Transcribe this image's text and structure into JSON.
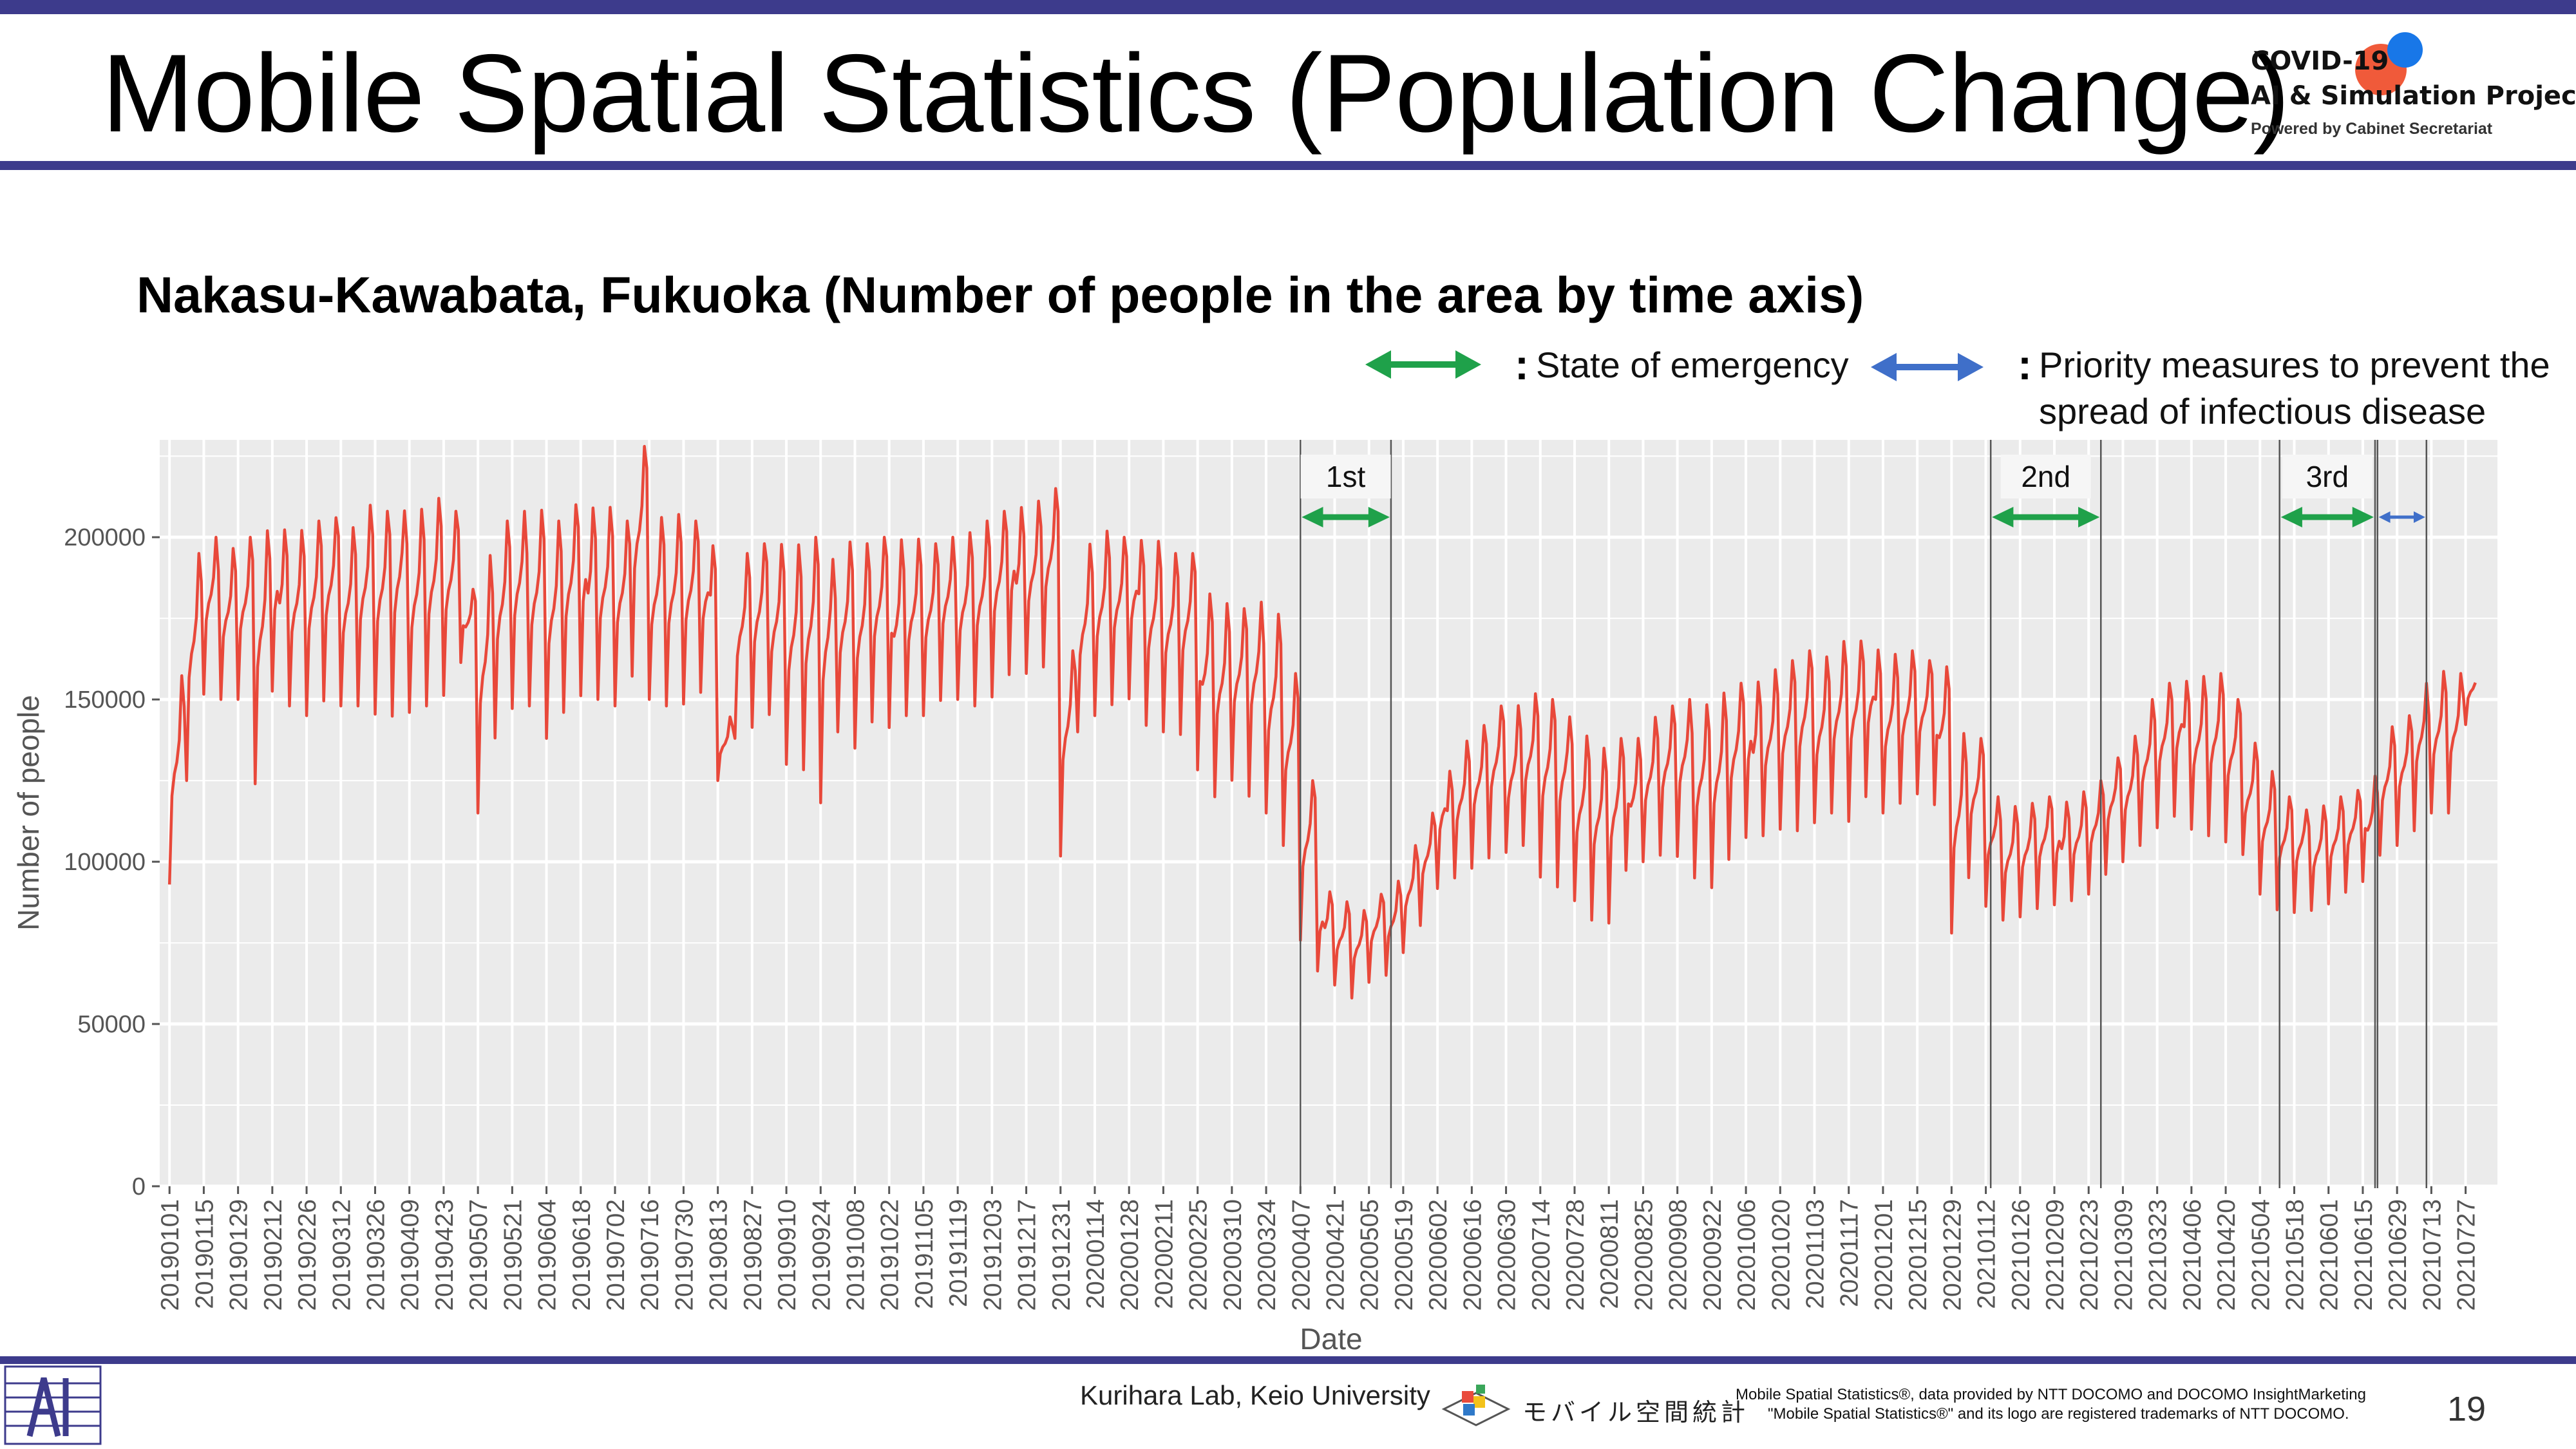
{
  "slide": {
    "title": "Mobile Spatial Statistics (Population Change)",
    "page_number": "19"
  },
  "logo": {
    "line1": "COVID-19",
    "line2": "AI & Simulation Project",
    "line3": "Powered by Cabinet Secretariat"
  },
  "legend": {
    "emergency_label": "State of emergency",
    "priority_label_line1": "Priority measures to prevent the",
    "priority_label_line2": "spread of infectious disease",
    "colon": ":"
  },
  "footer": {
    "lab": "Kurihara Lab, Keio University",
    "docomo_logo_text": "モバイル空間統計",
    "note_line1": "Mobile Spatial Statistics®, data provided by NTT DOCOMO and DOCOMO InsightMarketing",
    "note_line2": "\"Mobile Spatial Statistics®\" and its logo are registered trademarks of NTT DOCOMO."
  },
  "colors": {
    "brand_rule": "#3d3b8c",
    "series": "#e8483a",
    "emergency_arrow": "#1fa14a",
    "priority_arrow": "#3f6fc9",
    "panel_bg": "#ebebeb"
  },
  "chart_data": {
    "type": "line",
    "title": "Nakasu-Kawabata, Fukuoka (Number of people in the area by time axis)",
    "xlabel": "Date",
    "ylabel": "Number of people",
    "ylim": [
      0,
      230000
    ],
    "yticks": [
      0,
      50000,
      100000,
      150000,
      200000
    ],
    "grid": true,
    "x_tick_labels": [
      "20190101",
      "20190115",
      "20190129",
      "20190212",
      "20190226",
      "20190312",
      "20190326",
      "20190409",
      "20190423",
      "20190507",
      "20190521",
      "20190604",
      "20190618",
      "20190702",
      "20190716",
      "20190730",
      "20190813",
      "20190827",
      "20190910",
      "20190924",
      "20191008",
      "20191022",
      "20191105",
      "20191119",
      "20191203",
      "20191217",
      "20191231",
      "20200114",
      "20200128",
      "20200211",
      "20200225",
      "20200310",
      "20200324",
      "20200407",
      "20200421",
      "20200505",
      "20200519",
      "20200602",
      "20200616",
      "20200630",
      "20200714",
      "20200728",
      "20200811",
      "20200825",
      "20200908",
      "20200922",
      "20201006",
      "20201020",
      "20201103",
      "20201117",
      "20201201",
      "20201215",
      "20201229",
      "20210112",
      "20210126",
      "20210209",
      "20210223",
      "20210309",
      "20210323",
      "20210406",
      "20210420",
      "20210504",
      "20210518",
      "20210601",
      "20210615",
      "20210629",
      "20210713",
      "20210727"
    ],
    "x_start": "2019-01-01",
    "x_end": "2021-07-31",
    "series": [
      {
        "approx_weekly_values": [
          {
            "week_of": "2019-01-01",
            "low": 93000,
            "high": 158000
          },
          {
            "week_of": "2019-01-08",
            "low": 125000,
            "high": 195000
          },
          {
            "week_of": "2019-01-15",
            "low": 150000,
            "high": 200000
          },
          {
            "week_of": "2019-01-22",
            "low": 150000,
            "high": 198000
          },
          {
            "week_of": "2019-01-29",
            "low": 150000,
            "high": 200000
          },
          {
            "week_of": "2019-02-05",
            "low": 123000,
            "high": 202000
          },
          {
            "week_of": "2019-02-12",
            "low": 150000,
            "high": 205000
          },
          {
            "week_of": "2019-02-19",
            "low": 148000,
            "high": 203000
          },
          {
            "week_of": "2019-02-26",
            "low": 145000,
            "high": 205000
          },
          {
            "week_of": "2019-03-05",
            "low": 148000,
            "high": 206000
          },
          {
            "week_of": "2019-03-12",
            "low": 148000,
            "high": 205000
          },
          {
            "week_of": "2019-03-19",
            "low": 148000,
            "high": 210000
          },
          {
            "week_of": "2019-03-26",
            "low": 145000,
            "high": 208000
          },
          {
            "week_of": "2019-04-02",
            "low": 142000,
            "high": 212000
          },
          {
            "week_of": "2019-04-09",
            "low": 146000,
            "high": 210000
          },
          {
            "week_of": "2019-04-16",
            "low": 148000,
            "high": 212000
          },
          {
            "week_of": "2019-04-23",
            "low": 150000,
            "high": 208000
          },
          {
            "week_of": "2019-04-30",
            "low": 160000,
            "high": 185000
          },
          {
            "week_of": "2019-05-07",
            "low": 115000,
            "high": 195000
          },
          {
            "week_of": "2019-05-14",
            "low": 138000,
            "high": 205000
          },
          {
            "week_of": "2019-05-21",
            "low": 145000,
            "high": 208000
          },
          {
            "week_of": "2019-05-28",
            "low": 148000,
            "high": 210000
          },
          {
            "week_of": "2019-06-04",
            "low": 138000,
            "high": 205000
          },
          {
            "week_of": "2019-06-11",
            "low": 145000,
            "high": 210000
          },
          {
            "week_of": "2019-06-18",
            "low": 148000,
            "high": 212000
          },
          {
            "week_of": "2019-06-25",
            "low": 150000,
            "high": 210000
          },
          {
            "week_of": "2019-07-02",
            "low": 148000,
            "high": 205000
          },
          {
            "week_of": "2019-07-09",
            "low": 155000,
            "high": 228000
          },
          {
            "week_of": "2019-07-16",
            "low": 150000,
            "high": 208000
          },
          {
            "week_of": "2019-07-23",
            "low": 148000,
            "high": 207000
          },
          {
            "week_of": "2019-07-30",
            "low": 148000,
            "high": 205000
          },
          {
            "week_of": "2019-08-06",
            "low": 150000,
            "high": 200000
          },
          {
            "week_of": "2019-08-13",
            "low": 125000,
            "high": 145000
          },
          {
            "week_of": "2019-08-20",
            "low": 138000,
            "high": 195000
          },
          {
            "week_of": "2019-08-27",
            "low": 140000,
            "high": 198000
          },
          {
            "week_of": "2019-09-03",
            "low": 142000,
            "high": 200000
          },
          {
            "week_of": "2019-09-10",
            "low": 130000,
            "high": 198000
          },
          {
            "week_of": "2019-09-17",
            "low": 128000,
            "high": 200000
          },
          {
            "week_of": "2019-09-24",
            "low": 115000,
            "high": 198000
          },
          {
            "week_of": "2019-10-01",
            "low": 140000,
            "high": 200000
          },
          {
            "week_of": "2019-10-08",
            "low": 135000,
            "high": 198000
          },
          {
            "week_of": "2019-10-15",
            "low": 142000,
            "high": 200000
          },
          {
            "week_of": "2019-10-22",
            "low": 138000,
            "high": 202000
          },
          {
            "week_of": "2019-10-29",
            "low": 145000,
            "high": 200000
          },
          {
            "week_of": "2019-11-05",
            "low": 145000,
            "high": 198000
          },
          {
            "week_of": "2019-11-12",
            "low": 148000,
            "high": 200000
          },
          {
            "week_of": "2019-11-19",
            "low": 150000,
            "high": 203000
          },
          {
            "week_of": "2019-11-26",
            "low": 148000,
            "high": 205000
          },
          {
            "week_of": "2019-12-03",
            "low": 150000,
            "high": 208000
          },
          {
            "week_of": "2019-12-10",
            "low": 155000,
            "high": 212000
          },
          {
            "week_of": "2019-12-17",
            "low": 158000,
            "high": 212000
          },
          {
            "week_of": "2019-12-24",
            "low": 160000,
            "high": 215000
          },
          {
            "week_of": "2019-12-31",
            "low": 100000,
            "high": 165000
          },
          {
            "week_of": "2020-01-07",
            "low": 140000,
            "high": 200000
          },
          {
            "week_of": "2020-01-14",
            "low": 145000,
            "high": 202000
          },
          {
            "week_of": "2020-01-21",
            "low": 148000,
            "high": 200000
          },
          {
            "week_of": "2020-01-28",
            "low": 148000,
            "high": 202000
          },
          {
            "week_of": "2020-02-04",
            "low": 142000,
            "high": 200000
          },
          {
            "week_of": "2020-02-11",
            "low": 140000,
            "high": 195000
          },
          {
            "week_of": "2020-02-18",
            "low": 138000,
            "high": 195000
          },
          {
            "week_of": "2020-02-25",
            "low": 125000,
            "high": 185000
          },
          {
            "week_of": "2020-03-03",
            "low": 120000,
            "high": 180000
          },
          {
            "week_of": "2020-03-10",
            "low": 125000,
            "high": 178000
          },
          {
            "week_of": "2020-03-17",
            "low": 118000,
            "high": 180000
          },
          {
            "week_of": "2020-03-24",
            "low": 115000,
            "high": 178000
          },
          {
            "week_of": "2020-03-31",
            "low": 105000,
            "high": 158000
          },
          {
            "week_of": "2020-04-07",
            "low": 75000,
            "high": 125000
          },
          {
            "week_of": "2020-04-14",
            "low": 65000,
            "high": 92000
          },
          {
            "week_of": "2020-04-21",
            "low": 62000,
            "high": 88000
          },
          {
            "week_of": "2020-04-28",
            "low": 58000,
            "high": 85000
          },
          {
            "week_of": "2020-05-05",
            "low": 62000,
            "high": 90000
          },
          {
            "week_of": "2020-05-12",
            "low": 65000,
            "high": 95000
          },
          {
            "week_of": "2020-05-19",
            "low": 72000,
            "high": 105000
          },
          {
            "week_of": "2020-05-26",
            "low": 80000,
            "high": 115000
          },
          {
            "week_of": "2020-06-02",
            "low": 90000,
            "high": 130000
          },
          {
            "week_of": "2020-06-09",
            "low": 95000,
            "high": 138000
          },
          {
            "week_of": "2020-06-16",
            "low": 98000,
            "high": 142000
          },
          {
            "week_of": "2020-06-23",
            "low": 100000,
            "high": 148000
          },
          {
            "week_of": "2020-06-30",
            "low": 100000,
            "high": 150000
          },
          {
            "week_of": "2020-07-07",
            "low": 105000,
            "high": 152000
          },
          {
            "week_of": "2020-07-14",
            "low": 95000,
            "high": 150000
          },
          {
            "week_of": "2020-07-21",
            "low": 90000,
            "high": 148000
          },
          {
            "week_of": "2020-07-28",
            "low": 88000,
            "high": 140000
          },
          {
            "week_of": "2020-08-04",
            "low": 82000,
            "high": 135000
          },
          {
            "week_of": "2020-08-11",
            "low": 80000,
            "high": 138000
          },
          {
            "week_of": "2020-08-18",
            "low": 95000,
            "high": 140000
          },
          {
            "week_of": "2020-08-25",
            "low": 100000,
            "high": 145000
          },
          {
            "week_of": "2020-09-01",
            "low": 102000,
            "high": 148000
          },
          {
            "week_of": "2020-09-08",
            "low": 100000,
            "high": 150000
          },
          {
            "week_of": "2020-09-15",
            "low": 95000,
            "high": 150000
          },
          {
            "week_of": "2020-09-22",
            "low": 92000,
            "high": 152000
          },
          {
            "week_of": "2020-09-29",
            "low": 100000,
            "high": 155000
          },
          {
            "week_of": "2020-10-06",
            "low": 105000,
            "high": 158000
          },
          {
            "week_of": "2020-10-13",
            "low": 108000,
            "high": 160000
          },
          {
            "week_of": "2020-10-20",
            "low": 110000,
            "high": 162000
          },
          {
            "week_of": "2020-10-27",
            "low": 108000,
            "high": 165000
          },
          {
            "week_of": "2020-11-03",
            "low": 112000,
            "high": 165000
          },
          {
            "week_of": "2020-11-10",
            "low": 115000,
            "high": 168000
          },
          {
            "week_of": "2020-11-17",
            "low": 112000,
            "high": 168000
          },
          {
            "week_of": "2020-11-24",
            "low": 118000,
            "high": 168000
          },
          {
            "week_of": "2020-12-01",
            "low": 115000,
            "high": 165000
          },
          {
            "week_of": "2020-12-08",
            "low": 118000,
            "high": 165000
          },
          {
            "week_of": "2020-12-15",
            "low": 120000,
            "high": 162000
          },
          {
            "week_of": "2020-12-22",
            "low": 115000,
            "high": 162000
          },
          {
            "week_of": "2020-12-29",
            "low": 78000,
            "high": 140000
          },
          {
            "week_of": "2021-01-05",
            "low": 95000,
            "high": 138000
          },
          {
            "week_of": "2021-01-12",
            "low": 85000,
            "high": 120000
          },
          {
            "week_of": "2021-01-19",
            "low": 82000,
            "high": 118000
          },
          {
            "week_of": "2021-01-26",
            "low": 83000,
            "high": 118000
          },
          {
            "week_of": "2021-02-02",
            "low": 85000,
            "high": 120000
          },
          {
            "week_of": "2021-02-09",
            "low": 85000,
            "high": 120000
          },
          {
            "week_of": "2021-02-16",
            "low": 88000,
            "high": 122000
          },
          {
            "week_of": "2021-02-23",
            "low": 90000,
            "high": 125000
          },
          {
            "week_of": "2021-03-02",
            "low": 95000,
            "high": 132000
          },
          {
            "week_of": "2021-03-09",
            "low": 100000,
            "high": 140000
          },
          {
            "week_of": "2021-03-16",
            "low": 105000,
            "high": 150000
          },
          {
            "week_of": "2021-03-23",
            "low": 110000,
            "high": 155000
          },
          {
            "week_of": "2021-03-30",
            "low": 112000,
            "high": 158000
          },
          {
            "week_of": "2021-04-06",
            "low": 110000,
            "high": 158000
          },
          {
            "week_of": "2021-04-13",
            "low": 108000,
            "high": 158000
          },
          {
            "week_of": "2021-04-20",
            "low": 105000,
            "high": 150000
          },
          {
            "week_of": "2021-04-27",
            "low": 100000,
            "high": 138000
          },
          {
            "week_of": "2021-05-04",
            "low": 90000,
            "high": 128000
          },
          {
            "week_of": "2021-05-11",
            "low": 85000,
            "high": 120000
          },
          {
            "week_of": "2021-05-18",
            "low": 83000,
            "high": 118000
          },
          {
            "week_of": "2021-05-25",
            "low": 85000,
            "high": 118000
          },
          {
            "week_of": "2021-06-01",
            "low": 87000,
            "high": 120000
          },
          {
            "week_of": "2021-06-08",
            "low": 90000,
            "high": 122000
          },
          {
            "week_of": "2021-06-15",
            "low": 92000,
            "high": 128000
          },
          {
            "week_of": "2021-06-22",
            "low": 102000,
            "high": 142000
          },
          {
            "week_of": "2021-06-29",
            "low": 105000,
            "high": 145000
          },
          {
            "week_of": "2021-07-06",
            "low": 108000,
            "high": 155000
          },
          {
            "week_of": "2021-07-13",
            "low": 115000,
            "high": 160000
          },
          {
            "week_of": "2021-07-20",
            "low": 115000,
            "high": 158000
          },
          {
            "week_of": "2021-07-27",
            "low": 142000,
            "high": 160000
          }
        ]
      }
    ],
    "period_annotations": [
      {
        "label": "1st",
        "type": "State of emergency",
        "start": "2020-04-07",
        "end": "2020-05-14"
      },
      {
        "label": "2nd",
        "type": "State of emergency",
        "start": "2021-01-14",
        "end": "2021-02-28"
      },
      {
        "label": "3rd",
        "type": "State of emergency",
        "start": "2021-05-12",
        "end": "2021-06-20"
      },
      {
        "label": "",
        "type": "Priority measures to prevent the spread of infectious disease",
        "start": "2021-06-21",
        "end": "2021-07-11"
      }
    ]
  }
}
